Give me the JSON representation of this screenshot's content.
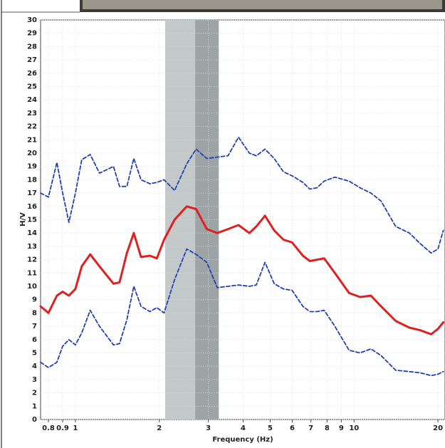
{
  "chart_data": {
    "type": "line",
    "x_label": "Frequency (Hz)",
    "y_label": "H/V",
    "log_x": true,
    "grid": true,
    "xlim": [
      0.75,
      21.2
    ],
    "ylim": [
      0,
      30
    ],
    "xticks": [
      0.8,
      0.9,
      1,
      2,
      3,
      4,
      5,
      6,
      7,
      8,
      9,
      10,
      20
    ],
    "yticks": [
      0,
      1,
      2,
      3,
      4,
      5,
      6,
      7,
      8,
      9,
      10,
      11,
      12,
      13,
      14,
      15,
      16,
      17,
      18,
      19,
      20,
      21,
      22,
      23,
      24,
      25,
      26,
      27,
      28,
      29,
      30
    ],
    "bands": [
      {
        "range": [
          2.1,
          2.69
        ],
        "color": "#c3c9c9"
      },
      {
        "range": [
          2.69,
          3.27
        ],
        "color": "#9ea4a6"
      }
    ],
    "x": [
      0.75,
      0.8,
      0.858,
      0.9,
      0.948,
      1,
      1.054,
      1.13,
      1.22,
      1.37,
      1.44,
      1.53,
      1.62,
      1.72,
      1.85,
      1.96,
      2.08,
      2.27,
      2.51,
      2.71,
      2.96,
      3.23,
      3.53,
      3.85,
      4.21,
      4.46,
      4.79,
      5.17,
      5.58,
      5.99,
      6.55,
      6.94,
      7.36,
      7.81,
      8.53,
      9.6,
      10.5,
      11.5,
      12.5,
      14.1,
      15.8,
      17.3,
      18.9,
      20,
      20.9
    ],
    "series": [
      {
        "color": "#2040b8",
        "dashed": true,
        "values": [
          17,
          16.7,
          19.3,
          17,
          14.8,
          17,
          19.5,
          19.9,
          18.5,
          19,
          17.5,
          17.5,
          19.6,
          18,
          17.7,
          17.8,
          18,
          17.2,
          19.2,
          20.3,
          19.6,
          19.7,
          19.8,
          21.2,
          20,
          19.8,
          20.3,
          19.6,
          18.6,
          18.3,
          17.8,
          17.3,
          17.4,
          17.9,
          18.2,
          17.9,
          17.4,
          17,
          16.4,
          14.5,
          14,
          13.2,
          12.5,
          12.8,
          14.2
        ]
      },
      {
        "color": "#2040b8",
        "dashed": true,
        "values": [
          4.3,
          3.9,
          4.3,
          5.5,
          6,
          5.6,
          6.5,
          8.2,
          7,
          5.6,
          5.7,
          7.5,
          10,
          8.5,
          8.1,
          8.4,
          8,
          10.5,
          12.8,
          12.4,
          11.8,
          9.9,
          10,
          10.1,
          10,
          10.1,
          11.8,
          10.2,
          9.8,
          9.7,
          8.5,
          8.1,
          8.1,
          8.2,
          7,
          5.2,
          5,
          5.3,
          4.8,
          3.7,
          3.6,
          3.5,
          3.3,
          3.4,
          3.6
        ]
      },
      {
        "color": "#e02020",
        "dashed": false,
        "values": [
          8.5,
          8,
          9.3,
          9.6,
          9.3,
          9.8,
          11.5,
          12.4,
          11.5,
          10.2,
          10.3,
          12.5,
          14,
          12.2,
          12.3,
          12.1,
          13.5,
          15,
          16,
          15.8,
          14.3,
          14,
          14.3,
          14.6,
          14,
          14.5,
          15.3,
          14.2,
          13.5,
          13.3,
          12.3,
          11.9,
          12,
          12.1,
          11,
          9.5,
          9.2,
          9.3,
          8.5,
          7.4,
          6.9,
          6.7,
          6.4,
          6.8,
          7.3
        ]
      }
    ]
  }
}
